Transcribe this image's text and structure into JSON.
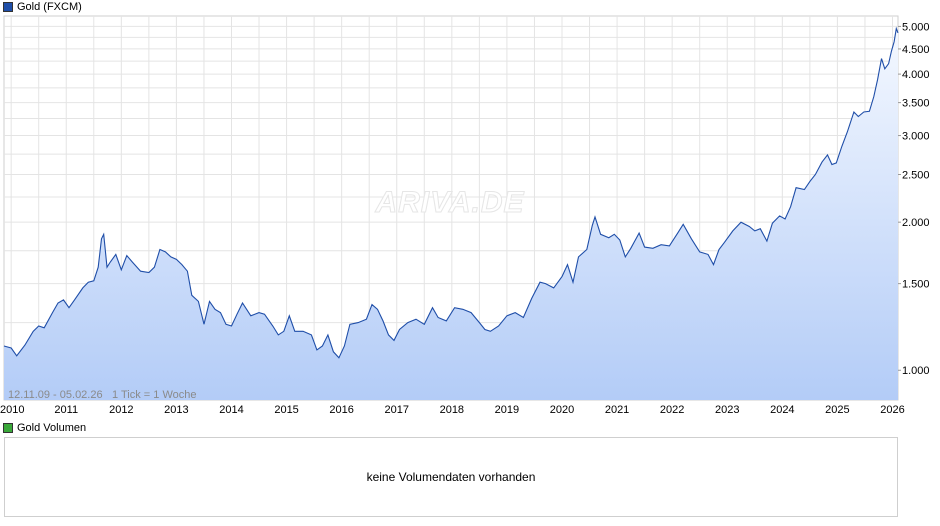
{
  "legend": {
    "price_label": "Gold (FXCM)",
    "price_color": "#1f4ea8",
    "volume_label": "Gold Volumen",
    "volume_color": "#3aa83a"
  },
  "info": {
    "range": "12.11.09 - 05.02.26",
    "tick": "1 Tick = 1 Woche"
  },
  "watermark": "ARIVA.DE",
  "volume_panel": {
    "message": "keine Volumendaten vorhanden"
  },
  "chart_data": {
    "type": "area",
    "title": "Gold (FXCM)",
    "y_scale": "log",
    "ylim": [
      870,
      5250
    ],
    "y_ticks": [
      1000,
      1500,
      2000,
      2500,
      3000,
      3500,
      4000,
      4500,
      5000
    ],
    "y_tick_labels": [
      "1.000",
      "1.500",
      "2.000",
      "2.500",
      "3.000",
      "3.500",
      "4.000",
      "4.500",
      "5.000"
    ],
    "x_tick_labels": [
      "2010",
      "2011",
      "2012",
      "2013",
      "2014",
      "2015",
      "2016",
      "2017",
      "2018",
      "2019",
      "2020",
      "2021",
      "2022",
      "2023",
      "2024",
      "2025",
      "2026"
    ],
    "x_ticks": [
      2010,
      2011,
      2012,
      2013,
      2014,
      2015,
      2016,
      2017,
      2018,
      2019,
      2020,
      2021,
      2022,
      2023,
      2024,
      2025,
      2026
    ],
    "xlim": [
      2009.87,
      2026.1
    ],
    "grid": true,
    "legend": "top-left",
    "series": [
      {
        "name": "Gold (FXCM)",
        "color": "#1f4ea8",
        "points": [
          [
            2009.87,
            1120
          ],
          [
            2010.0,
            1110
          ],
          [
            2010.1,
            1070
          ],
          [
            2010.25,
            1125
          ],
          [
            2010.4,
            1200
          ],
          [
            2010.5,
            1230
          ],
          [
            2010.6,
            1220
          ],
          [
            2010.75,
            1310
          ],
          [
            2010.85,
            1370
          ],
          [
            2010.95,
            1390
          ],
          [
            2011.05,
            1340
          ],
          [
            2011.15,
            1390
          ],
          [
            2011.3,
            1470
          ],
          [
            2011.4,
            1510
          ],
          [
            2011.5,
            1520
          ],
          [
            2011.58,
            1620
          ],
          [
            2011.64,
            1850
          ],
          [
            2011.68,
            1890
          ],
          [
            2011.74,
            1620
          ],
          [
            2011.8,
            1660
          ],
          [
            2011.9,
            1720
          ],
          [
            2012.0,
            1600
          ],
          [
            2012.1,
            1710
          ],
          [
            2012.2,
            1660
          ],
          [
            2012.35,
            1590
          ],
          [
            2012.5,
            1580
          ],
          [
            2012.6,
            1620
          ],
          [
            2012.7,
            1760
          ],
          [
            2012.8,
            1740
          ],
          [
            2012.9,
            1700
          ],
          [
            2013.0,
            1680
          ],
          [
            2013.1,
            1640
          ],
          [
            2013.2,
            1590
          ],
          [
            2013.28,
            1420
          ],
          [
            2013.4,
            1380
          ],
          [
            2013.5,
            1240
          ],
          [
            2013.6,
            1380
          ],
          [
            2013.7,
            1330
          ],
          [
            2013.8,
            1310
          ],
          [
            2013.9,
            1240
          ],
          [
            2014.0,
            1230
          ],
          [
            2014.1,
            1300
          ],
          [
            2014.2,
            1370
          ],
          [
            2014.35,
            1290
          ],
          [
            2014.5,
            1310
          ],
          [
            2014.6,
            1300
          ],
          [
            2014.75,
            1230
          ],
          [
            2014.85,
            1180
          ],
          [
            2014.95,
            1200
          ],
          [
            2015.05,
            1290
          ],
          [
            2015.15,
            1200
          ],
          [
            2015.3,
            1200
          ],
          [
            2015.45,
            1180
          ],
          [
            2015.55,
            1100
          ],
          [
            2015.65,
            1120
          ],
          [
            2015.75,
            1180
          ],
          [
            2015.85,
            1090
          ],
          [
            2015.95,
            1060
          ],
          [
            2016.05,
            1120
          ],
          [
            2016.15,
            1240
          ],
          [
            2016.3,
            1250
          ],
          [
            2016.45,
            1270
          ],
          [
            2016.55,
            1360
          ],
          [
            2016.65,
            1330
          ],
          [
            2016.75,
            1260
          ],
          [
            2016.85,
            1180
          ],
          [
            2016.95,
            1150
          ],
          [
            2017.05,
            1210
          ],
          [
            2017.2,
            1250
          ],
          [
            2017.35,
            1270
          ],
          [
            2017.5,
            1240
          ],
          [
            2017.65,
            1340
          ],
          [
            2017.75,
            1280
          ],
          [
            2017.9,
            1260
          ],
          [
            2018.05,
            1340
          ],
          [
            2018.2,
            1330
          ],
          [
            2018.35,
            1310
          ],
          [
            2018.5,
            1250
          ],
          [
            2018.6,
            1210
          ],
          [
            2018.7,
            1200
          ],
          [
            2018.85,
            1230
          ],
          [
            2019.0,
            1290
          ],
          [
            2019.15,
            1310
          ],
          [
            2019.3,
            1280
          ],
          [
            2019.45,
            1400
          ],
          [
            2019.6,
            1510
          ],
          [
            2019.7,
            1500
          ],
          [
            2019.85,
            1470
          ],
          [
            2020.0,
            1550
          ],
          [
            2020.1,
            1640
          ],
          [
            2020.2,
            1510
          ],
          [
            2020.3,
            1700
          ],
          [
            2020.45,
            1760
          ],
          [
            2020.55,
            1970
          ],
          [
            2020.6,
            2050
          ],
          [
            2020.7,
            1890
          ],
          [
            2020.85,
            1860
          ],
          [
            2020.95,
            1890
          ],
          [
            2021.05,
            1840
          ],
          [
            2021.15,
            1700
          ],
          [
            2021.25,
            1770
          ],
          [
            2021.4,
            1900
          ],
          [
            2021.5,
            1780
          ],
          [
            2021.65,
            1770
          ],
          [
            2021.8,
            1800
          ],
          [
            2021.95,
            1790
          ],
          [
            2022.1,
            1900
          ],
          [
            2022.2,
            1980
          ],
          [
            2022.35,
            1850
          ],
          [
            2022.5,
            1740
          ],
          [
            2022.65,
            1720
          ],
          [
            2022.75,
            1640
          ],
          [
            2022.85,
            1760
          ],
          [
            2022.95,
            1820
          ],
          [
            2023.1,
            1920
          ],
          [
            2023.25,
            2000
          ],
          [
            2023.4,
            1960
          ],
          [
            2023.5,
            1920
          ],
          [
            2023.6,
            1940
          ],
          [
            2023.72,
            1830
          ],
          [
            2023.82,
            1990
          ],
          [
            2023.95,
            2060
          ],
          [
            2024.05,
            2030
          ],
          [
            2024.15,
            2150
          ],
          [
            2024.25,
            2350
          ],
          [
            2024.4,
            2330
          ],
          [
            2024.5,
            2420
          ],
          [
            2024.6,
            2500
          ],
          [
            2024.72,
            2650
          ],
          [
            2024.82,
            2740
          ],
          [
            2024.9,
            2620
          ],
          [
            2024.98,
            2640
          ],
          [
            2025.08,
            2850
          ],
          [
            2025.18,
            3050
          ],
          [
            2025.3,
            3350
          ],
          [
            2025.38,
            3280
          ],
          [
            2025.48,
            3350
          ],
          [
            2025.58,
            3360
          ],
          [
            2025.66,
            3600
          ],
          [
            2025.73,
            3900
          ],
          [
            2025.8,
            4300
          ],
          [
            2025.86,
            4100
          ],
          [
            2025.93,
            4200
          ],
          [
            2025.98,
            4450
          ],
          [
            2026.03,
            4650
          ],
          [
            2026.07,
            4950
          ],
          [
            2026.1,
            4850
          ]
        ]
      }
    ]
  }
}
